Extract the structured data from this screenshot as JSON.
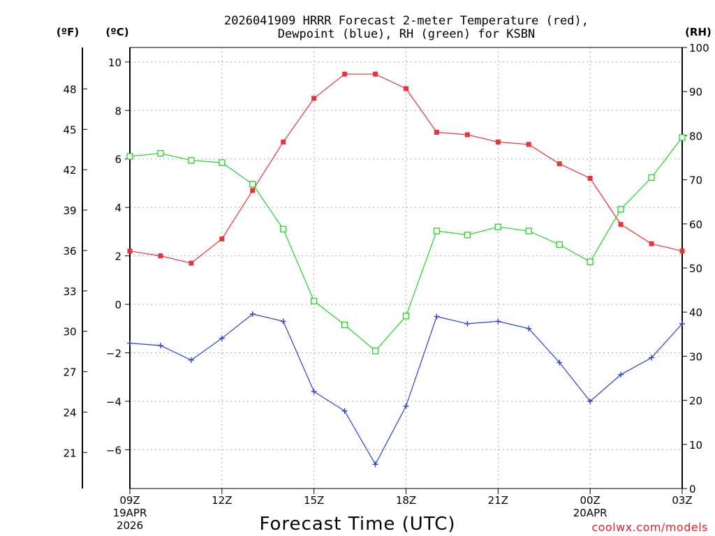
{
  "chart_data": {
    "type": "line",
    "title_lines": [
      "2026041909 HRRR Forecast 2-meter Temperature (red),",
      "Dewpoint (blue), RH (green) for KSBN"
    ],
    "xlabel": "Forecast Time (UTC)",
    "credit": "coolwx.com/models",
    "units": {
      "left_outer": "(ºF)",
      "left_inner": "(ºC)",
      "right": "(RH)"
    },
    "x_hours": [
      0,
      1,
      2,
      3,
      4,
      5,
      6,
      7,
      8,
      9,
      10,
      11,
      12,
      13,
      14,
      15,
      16,
      17,
      18
    ],
    "x_ticks": [
      {
        "hour": 0,
        "lines": [
          "09Z",
          "19APR",
          "2026"
        ]
      },
      {
        "hour": 3,
        "lines": [
          "12Z"
        ]
      },
      {
        "hour": 6,
        "lines": [
          "15Z"
        ]
      },
      {
        "hour": 9,
        "lines": [
          "18Z"
        ]
      },
      {
        "hour": 12,
        "lines": [
          "21Z"
        ]
      },
      {
        "hour": 15,
        "lines": [
          "00Z",
          "20APR"
        ]
      },
      {
        "hour": 18,
        "lines": [
          "03Z"
        ]
      }
    ],
    "xlim": [
      0,
      18
    ],
    "celsius_axis": {
      "ylim": [
        -7.6,
        10.6
      ],
      "ticks": [
        10,
        8,
        6,
        4,
        2,
        0,
        -2,
        -4,
        -6
      ]
    },
    "fahrenheit_axis": {
      "ticks": [
        48,
        45,
        42,
        39,
        36,
        33,
        30,
        27,
        24,
        21
      ]
    },
    "rh_axis": {
      "ylim": [
        0,
        100
      ],
      "ticks": [
        100,
        90,
        80,
        70,
        60,
        50,
        40,
        30,
        20,
        10,
        0
      ]
    },
    "series": [
      {
        "name": "Temperature",
        "axis": "celsius",
        "color": "#e8333a",
        "marker": "filled-square",
        "values": [
          2.2,
          2.0,
          1.7,
          2.7,
          4.7,
          6.7,
          8.5,
          9.5,
          9.5,
          8.9,
          7.1,
          7.0,
          6.7,
          6.6,
          5.8,
          5.2,
          3.3,
          2.5,
          2.2
        ]
      },
      {
        "name": "Dewpoint",
        "axis": "celsius",
        "color": "#2b3fd9",
        "marker": "plus",
        "values": [
          -1.6,
          -1.7,
          -2.3,
          -1.4,
          -0.4,
          -0.7,
          -3.6,
          -4.4,
          -6.6,
          -4.2,
          -0.5,
          -0.8,
          -0.7,
          -1.0,
          -2.4,
          -4.0,
          -2.9,
          -2.2,
          -0.8
        ]
      },
      {
        "name": "RH",
        "axis": "rh",
        "color": "#22d322",
        "marker": "open-square",
        "values": [
          75.3,
          76.0,
          74.4,
          73.9,
          69.0,
          58.8,
          42.5,
          37.1,
          31.2,
          39.1,
          58.4,
          57.5,
          59.3,
          58.4,
          55.3,
          51.4,
          63.3,
          70.5,
          79.6
        ]
      }
    ]
  }
}
